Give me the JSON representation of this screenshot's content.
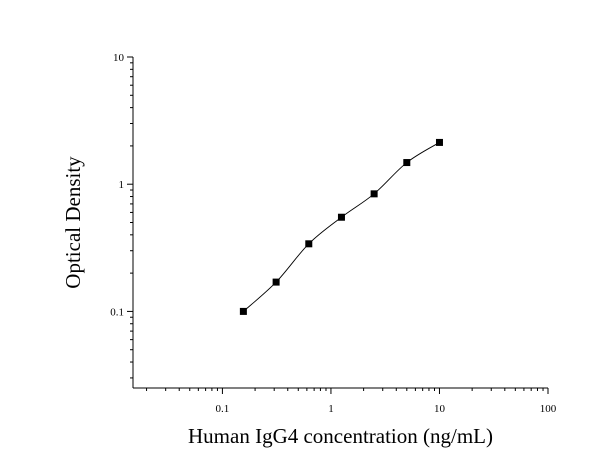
{
  "chart_data": {
    "type": "scatter",
    "title": "",
    "xlabel": "Human IgG4 concentration (ng/mL)",
    "ylabel": "Optical Density",
    "x_scale": "log",
    "y_scale": "log",
    "xlim": [
      0.015,
      100
    ],
    "ylim": [
      0.025,
      10
    ],
    "x_tick_labels": [
      "0.1",
      "1",
      "10",
      "100"
    ],
    "x_tick_values": [
      0.1,
      1,
      10,
      100
    ],
    "y_tick_labels": [
      "0.1",
      "1",
      "10"
    ],
    "y_tick_values": [
      0.1,
      1,
      10
    ],
    "grid": false,
    "legend": "none",
    "series": [
      {
        "x": [
          0.156,
          0.3125,
          0.625,
          1.25,
          2.5,
          5,
          10
        ],
        "y": [
          0.1,
          0.17,
          0.34,
          0.55,
          0.84,
          1.48,
          2.13
        ]
      }
    ],
    "fit_curve": true,
    "colors": {
      "marker": "#000000",
      "line": "#000000"
    }
  }
}
